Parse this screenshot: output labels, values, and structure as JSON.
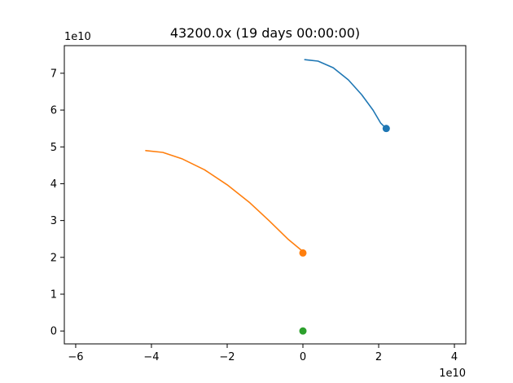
{
  "chart_data": {
    "type": "line",
    "title": "43200.0x (19 days 00:00:00)",
    "xlabel": "",
    "ylabel": "",
    "x_offset_label": "1e10",
    "y_offset_label": "1e10",
    "xlim": [
      -6.3,
      4.3
    ],
    "ylim": [
      -0.35,
      7.75
    ],
    "xticks": [
      -6,
      -4,
      -2,
      0,
      2,
      4
    ],
    "xtick_labels": [
      "−6",
      "−4",
      "−2",
      "0",
      "2",
      "4"
    ],
    "yticks": [
      0,
      1,
      2,
      3,
      4,
      5,
      6,
      7
    ],
    "ytick_labels": [
      "0",
      "1",
      "2",
      "3",
      "4",
      "5",
      "6",
      "7"
    ],
    "grid": false,
    "series": [
      {
        "color": "#1f77b4",
        "x": [
          0.05,
          0.4,
          0.8,
          1.2,
          1.55,
          1.85,
          2.05,
          2.2
        ],
        "y": [
          7.37,
          7.33,
          7.15,
          6.82,
          6.42,
          6.0,
          5.65,
          5.5
        ],
        "marker": [
          2.2,
          5.5
        ]
      },
      {
        "color": "#ff7f0e",
        "x": [
          -4.15,
          -3.7,
          -3.2,
          -2.6,
          -2.0,
          -1.4,
          -0.9,
          -0.4,
          -0.05,
          0.0
        ],
        "y": [
          4.9,
          4.85,
          4.68,
          4.38,
          3.97,
          3.48,
          3.0,
          2.5,
          2.2,
          2.12
        ],
        "marker": [
          0.0,
          2.12
        ]
      },
      {
        "color": "#2ca02c",
        "x": [
          0.0
        ],
        "y": [
          0.0
        ],
        "marker": [
          0.0,
          0.0
        ]
      }
    ]
  }
}
